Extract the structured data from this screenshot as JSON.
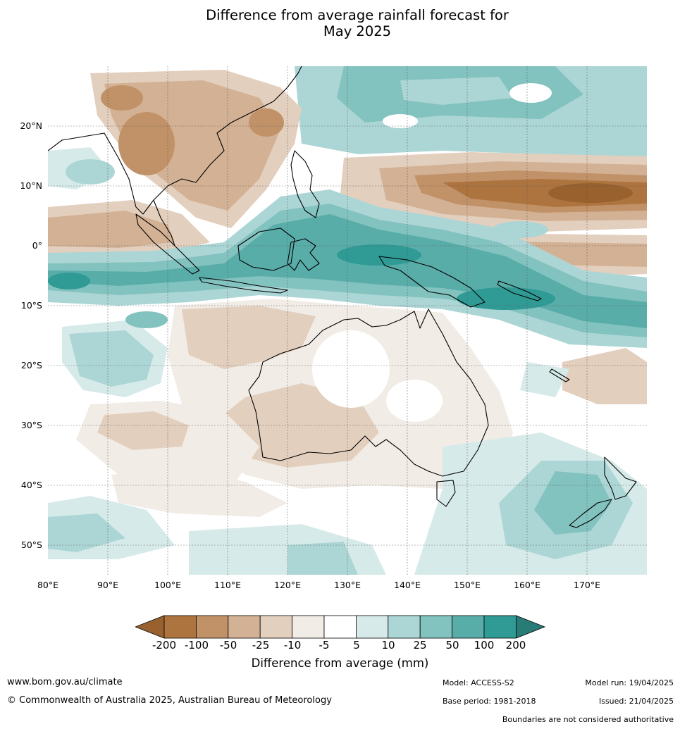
{
  "title": {
    "line1": "Difference from average rainfall forecast for",
    "line2": "May 2025"
  },
  "map": {
    "lat_ticks": [
      "20°N",
      "10°N",
      "0°",
      "10°S",
      "20°S",
      "30°S",
      "40°S",
      "50°S"
    ],
    "lon_ticks": [
      "80°E",
      "90°E",
      "100°E",
      "110°E",
      "120°E",
      "130°E",
      "140°E",
      "150°E",
      "160°E",
      "170°E"
    ],
    "lat_range": [
      -55,
      30
    ],
    "lon_range": [
      80,
      180
    ],
    "legend_colors": {
      "below_minus_200": "#98612e",
      "minus_200_to_minus_100": "#ae743f",
      "minus_100_to_minus_50": "#c19268",
      "minus_50_to_minus_25": "#d3b194",
      "minus_25_to_minus_10": "#e3cfbe",
      "minus_10_to_minus_5": "#f2ece6",
      "minus_5_to_5": "#ffffff",
      "5_to_10": "#d6ebe9",
      "10_to_25": "#acd6d5",
      "25_to_50": "#82c2bf",
      "50_to_100": "#59ada9",
      "100_to_200": "#309a95",
      "above_200": "#297b78"
    },
    "regions": [
      {
        "name": "Southeast Asia mainland",
        "anomaly": "dry",
        "level": "-50 to -25"
      },
      {
        "name": "Maritime Continent and New Guinea",
        "anomaly": "wet",
        "level": "50 to 100"
      },
      {
        "name": "Western Pacific 8°N–12°N",
        "anomaly": "dry",
        "level": "-200 to -100"
      },
      {
        "name": "Australia interior",
        "anomaly": "near average",
        "level": "-10 to -5"
      },
      {
        "name": "Southern Ocean and New Zealand",
        "anomaly": "wet",
        "level": "10 to 25"
      }
    ]
  },
  "colorbar": {
    "labels": [
      "-200",
      "-100",
      "-50",
      "-25",
      "-10",
      "-5",
      "5",
      "10",
      "25",
      "50",
      "100",
      "200"
    ],
    "title": "Difference from average (mm)"
  },
  "footer": {
    "website": "www.bom.gov.au/climate",
    "copyright": "© Commonwealth of Australia 2025, Australian Bureau of Meteorology",
    "model": "Model: ACCESS-S2",
    "base_period": "Base period: 1981-2018",
    "model_run": "Model run: 19/04/2025",
    "issued": "Issued: 21/04/2025",
    "disclaimer": "Boundaries are not considered authoritative"
  }
}
